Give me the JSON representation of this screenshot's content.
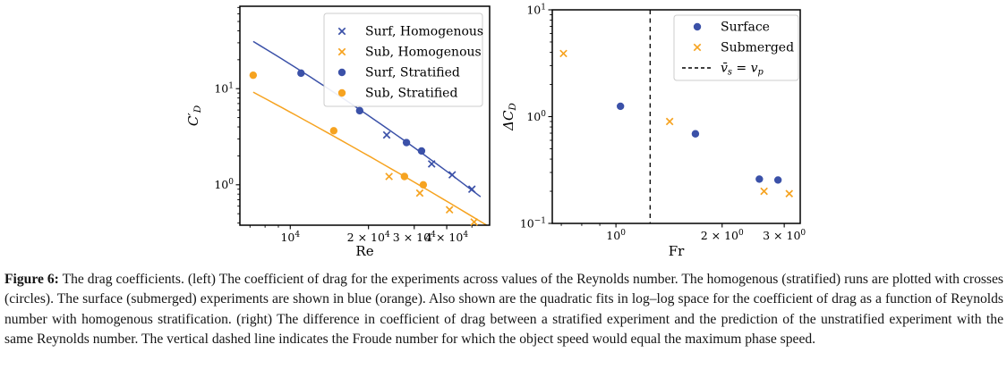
{
  "caption": {
    "label": "Figure 6:",
    "text": "The drag coefficients. (left) The coefficient of drag for the experiments across values of the Reynolds number. The homogenous (stratified) runs are plotted with crosses (circles). The surface (submerged) experiments are shown in blue (orange). Also shown are the quadratic fits in log–log space for the coefficient of drag as a function of Reynolds number with homogenous stratification. (right) The difference in coefficient of drag between a stratified experiment and the prediction of the unstratified experiment with the same Reynolds number. The vertical dashed line indicates the Froude number for which the object speed would equal the maximum phase speed."
  },
  "colors": {
    "blue": "#3b51a8",
    "orange": "#f6a320",
    "axis": "#000000",
    "legend_border": "#cccccc"
  },
  "chart_data": [
    {
      "type": "scatter",
      "title": "",
      "xlabel": "Re",
      "ylabel": "C′_D",
      "xscale": "log",
      "yscale": "log",
      "xlim": [
        6400,
        58500
      ],
      "ylim": [
        0.38,
        72
      ],
      "grid": false,
      "xticks": [
        {
          "v": 10000,
          "label": "10^4"
        },
        {
          "v": 20000,
          "label": "2 × 10^4"
        },
        {
          "v": 30000,
          "label": "3 × 10^4"
        },
        {
          "v": 40000,
          "label": "4 × 10^4"
        }
      ],
      "yticks": [
        {
          "v": 10,
          "label": "10^1"
        },
        {
          "v": 1,
          "label": "10^0"
        }
      ],
      "legend": {
        "position": "upper right",
        "entries": [
          {
            "marker": "cross",
            "color": "blue",
            "label": "Surf, Homogenous"
          },
          {
            "marker": "cross",
            "color": "orange",
            "label": "Sub, Homogenous"
          },
          {
            "marker": "circle",
            "color": "blue",
            "label": "Surf, Stratified"
          },
          {
            "marker": "circle",
            "color": "orange",
            "label": "Sub, Stratified"
          }
        ]
      },
      "series": [
        {
          "name": "Surf, Homogenous",
          "marker": "cross",
          "color": "blue",
          "points": [
            [
              23500,
              3.3
            ],
            [
              35000,
              1.65
            ],
            [
              42000,
              1.27
            ],
            [
              50000,
              0.9
            ]
          ]
        },
        {
          "name": "Sub, Homogenous",
          "marker": "cross",
          "color": "orange",
          "points": [
            [
              24000,
              1.22
            ],
            [
              31500,
              0.82
            ],
            [
              41000,
              0.55
            ],
            [
              51000,
              0.41
            ]
          ]
        },
        {
          "name": "Surf, Stratified",
          "marker": "circle",
          "color": "blue",
          "points": [
            [
              11000,
              14.5
            ],
            [
              18500,
              5.9
            ],
            [
              28000,
              2.75
            ],
            [
              32000,
              2.25
            ]
          ]
        },
        {
          "name": "Sub, Stratified",
          "marker": "circle",
          "color": "orange",
          "points": [
            [
              7200,
              13.8
            ],
            [
              14700,
              3.65
            ],
            [
              27500,
              1.22
            ],
            [
              32500,
              1.0
            ]
          ]
        }
      ],
      "fits": [
        {
          "name": "quadratic fit surface homogenous",
          "color": "blue",
          "points": [
            [
              7200,
              31
            ],
            [
              19500,
              5.5
            ],
            [
              54000,
              0.75
            ]
          ]
        },
        {
          "name": "quadratic fit submerged homogenous",
          "color": "orange",
          "points": [
            [
              7200,
              9.2
            ],
            [
              19400,
              2.1
            ],
            [
              57000,
              0.38
            ]
          ]
        }
      ]
    },
    {
      "type": "scatter",
      "title": "",
      "xlabel": "Fr",
      "ylabel": "ΔC_D",
      "xscale": "log",
      "yscale": "log",
      "xlim": [
        0.66,
        3.33
      ],
      "ylim": [
        0.1,
        10
      ],
      "grid": false,
      "xticks": [
        {
          "v": 1,
          "label": "10^0"
        },
        {
          "v": 2,
          "label": "2 × 10^0"
        },
        {
          "v": 3,
          "label": "3 × 10^0"
        }
      ],
      "yticks": [
        {
          "v": 10,
          "label": "10^1"
        },
        {
          "v": 1,
          "label": "10^0"
        },
        {
          "v": 0.1,
          "label": "10^-1"
        }
      ],
      "vline": {
        "x": 1.25,
        "style": "dashed",
        "label": "v̄_s = v_p"
      },
      "legend": {
        "position": "upper right",
        "entries": [
          {
            "marker": "circle",
            "color": "blue",
            "label": "Surface"
          },
          {
            "marker": "cross",
            "color": "orange",
            "label": "Submerged"
          },
          {
            "marker": "dashed-line",
            "color": "axis",
            "label": "v̄_s = v_p",
            "math": true
          }
        ]
      },
      "series": [
        {
          "name": "Surface",
          "marker": "circle",
          "color": "blue",
          "points": [
            [
              1.03,
              1.25
            ],
            [
              1.68,
              0.69
            ],
            [
              2.55,
              0.26
            ],
            [
              2.88,
              0.255
            ]
          ]
        },
        {
          "name": "Submerged",
          "marker": "cross",
          "color": "orange",
          "points": [
            [
              0.71,
              3.9
            ],
            [
              1.42,
              0.9
            ],
            [
              2.63,
              0.2
            ],
            [
              3.1,
              0.19
            ]
          ]
        }
      ]
    }
  ]
}
